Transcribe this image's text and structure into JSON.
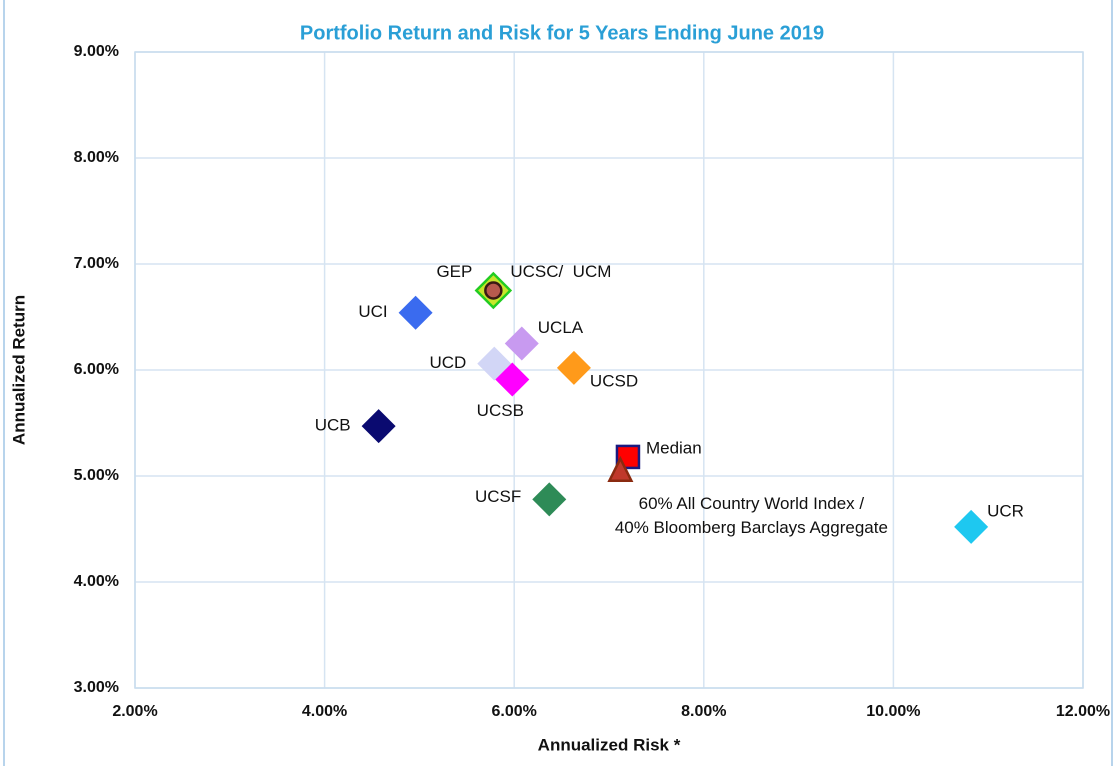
{
  "chart_data": {
    "type": "scatter",
    "title": "Portfolio Return and Risk for 5 Years Ending June 2019",
    "xlabel": "Annualized Risk *",
    "ylabel": "Annualized Return",
    "xlim": [
      2,
      12
    ],
    "ylim": [
      3,
      9
    ],
    "xticks": [
      {
        "value": 2,
        "label": "2.00%"
      },
      {
        "value": 4,
        "label": "4.00%"
      },
      {
        "value": 6,
        "label": "6.00%"
      },
      {
        "value": 8,
        "label": "8.00%"
      },
      {
        "value": 10,
        "label": "10.00%"
      },
      {
        "value": 12,
        "label": "12.00%"
      }
    ],
    "yticks": [
      {
        "value": 3,
        "label": "3.00%"
      },
      {
        "value": 4,
        "label": "4.00%"
      },
      {
        "value": 5,
        "label": "5.00%"
      },
      {
        "value": 6,
        "label": "6.00%"
      },
      {
        "value": 7,
        "label": "7.00%"
      },
      {
        "value": 8,
        "label": "8.00%"
      },
      {
        "value": 9,
        "label": "9.00%"
      }
    ],
    "grid": true,
    "points": [
      {
        "name": "UCSC/  UCM",
        "x": 5.78,
        "y": 6.75,
        "marker": "diamond",
        "color": "#c8e62a",
        "edge": "#22cc22"
      },
      {
        "name": "GEP",
        "x": 5.78,
        "y": 6.75,
        "marker": "circle",
        "color": "#b85a4e",
        "edge": "#3a1a14"
      },
      {
        "name": "UCI",
        "x": 4.96,
        "y": 6.54,
        "marker": "diamond",
        "color": "#3a6bef"
      },
      {
        "name": "UCLA",
        "x": 6.08,
        "y": 6.25,
        "marker": "diamond",
        "color": "#c89af0"
      },
      {
        "name": "UCD",
        "x": 5.79,
        "y": 6.06,
        "marker": "diamond",
        "color": "#d2d6f6"
      },
      {
        "name": "UCSB",
        "x": 5.98,
        "y": 5.91,
        "marker": "diamond",
        "color": "#ff00ff"
      },
      {
        "name": "UCSD",
        "x": 6.63,
        "y": 6.02,
        "marker": "diamond",
        "color": "#ff9a1a"
      },
      {
        "name": "UCB",
        "x": 4.57,
        "y": 5.47,
        "marker": "diamond",
        "color": "#0a0a70"
      },
      {
        "name": "Median",
        "x": 7.2,
        "y": 5.18,
        "marker": "square",
        "color": "#ff0000",
        "edge": "#1a1a80"
      },
      {
        "name": [
          "60% All Country World Index /",
          "40% Bloomberg Barclays Aggregate"
        ],
        "x": 7.12,
        "y": 5.05,
        "marker": "triangle",
        "color": "#c0392b",
        "edge": "#8a2a10"
      },
      {
        "name": "UCSF",
        "x": 6.37,
        "y": 4.78,
        "marker": "diamond",
        "color": "#2e8b57"
      },
      {
        "name": "UCR",
        "x": 10.82,
        "y": 4.52,
        "marker": "diamond",
        "color": "#1ec8f0"
      }
    ]
  }
}
